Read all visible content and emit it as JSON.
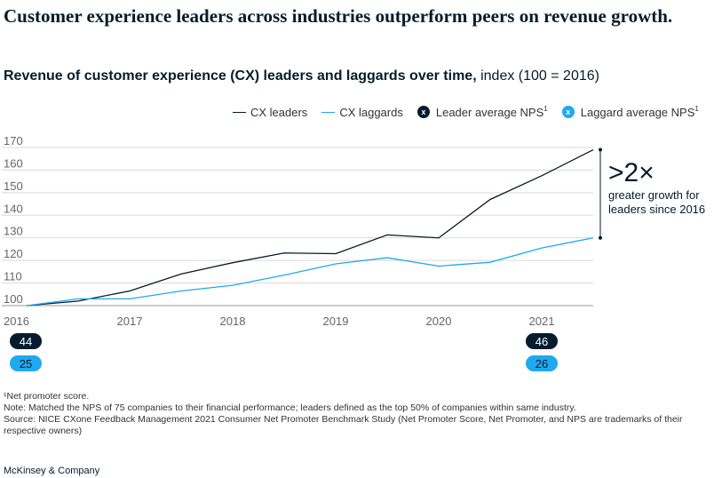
{
  "headline": "Customer experience leaders across industries outperform peers on revenue growth.",
  "subtitle_bold": "Revenue of customer experience (CX) leaders and laggards over time,",
  "subtitle_rest": " index (100 = 2016)",
  "legend": {
    "leaders": "CX leaders",
    "laggards": "CX laggards",
    "leader_nps": "Leader average NPS",
    "laggard_nps": "Laggard average NPS",
    "mark": "x",
    "footnote_ref": "1"
  },
  "colors": {
    "leaders": "#051c2c",
    "laggards": "#1fa9f0",
    "grid": "#d9d9d9",
    "axis_text": "#666666"
  },
  "callout": {
    "big": ">2×",
    "line1": "greater growth for",
    "line2": "leaders since 2016"
  },
  "chart_data": {
    "type": "line",
    "x": [
      2016.0,
      2016.5,
      2017.0,
      2017.5,
      2018.0,
      2018.5,
      2019.0,
      2019.5,
      2020.0,
      2020.5,
      2021.0,
      2021.5
    ],
    "series": [
      {
        "name": "CX leaders",
        "values": [
          100,
          102,
          106.5,
          114,
          119,
          123.3,
          123,
          131.3,
          130,
          147,
          157.5,
          169
        ]
      },
      {
        "name": "CX laggards",
        "values": [
          100,
          103,
          103,
          106.5,
          109,
          113.5,
          118.5,
          121.2,
          117.5,
          119.2,
          125.5,
          130
        ]
      }
    ],
    "x_ticks": [
      "2016",
      "2017",
      "2018",
      "2019",
      "2020",
      "2021"
    ],
    "y_ticks": [
      100,
      110,
      120,
      130,
      140,
      150,
      160,
      170
    ],
    "ylim": [
      100,
      170
    ],
    "nps": {
      "leader": [
        {
          "year": "2016",
          "value": "44"
        },
        {
          "year": "2021",
          "value": "46"
        }
      ],
      "laggard": [
        {
          "year": "2016",
          "value": "25"
        },
        {
          "year": "2021",
          "value": "26"
        }
      ]
    }
  },
  "footnotes": [
    "¹Net promoter score.",
    "Note: Matched the NPS of 75 companies to their financial performance; leaders defined as the top 50% of companies within same industry.",
    "Source: NICE CXone Feedback Management 2021 Consumer Net Promoter Benchmark Study (Net Promoter Score, Net Promoter, and NPS are trademarks of their respective owners)"
  ],
  "brand": "McKinsey & Company"
}
